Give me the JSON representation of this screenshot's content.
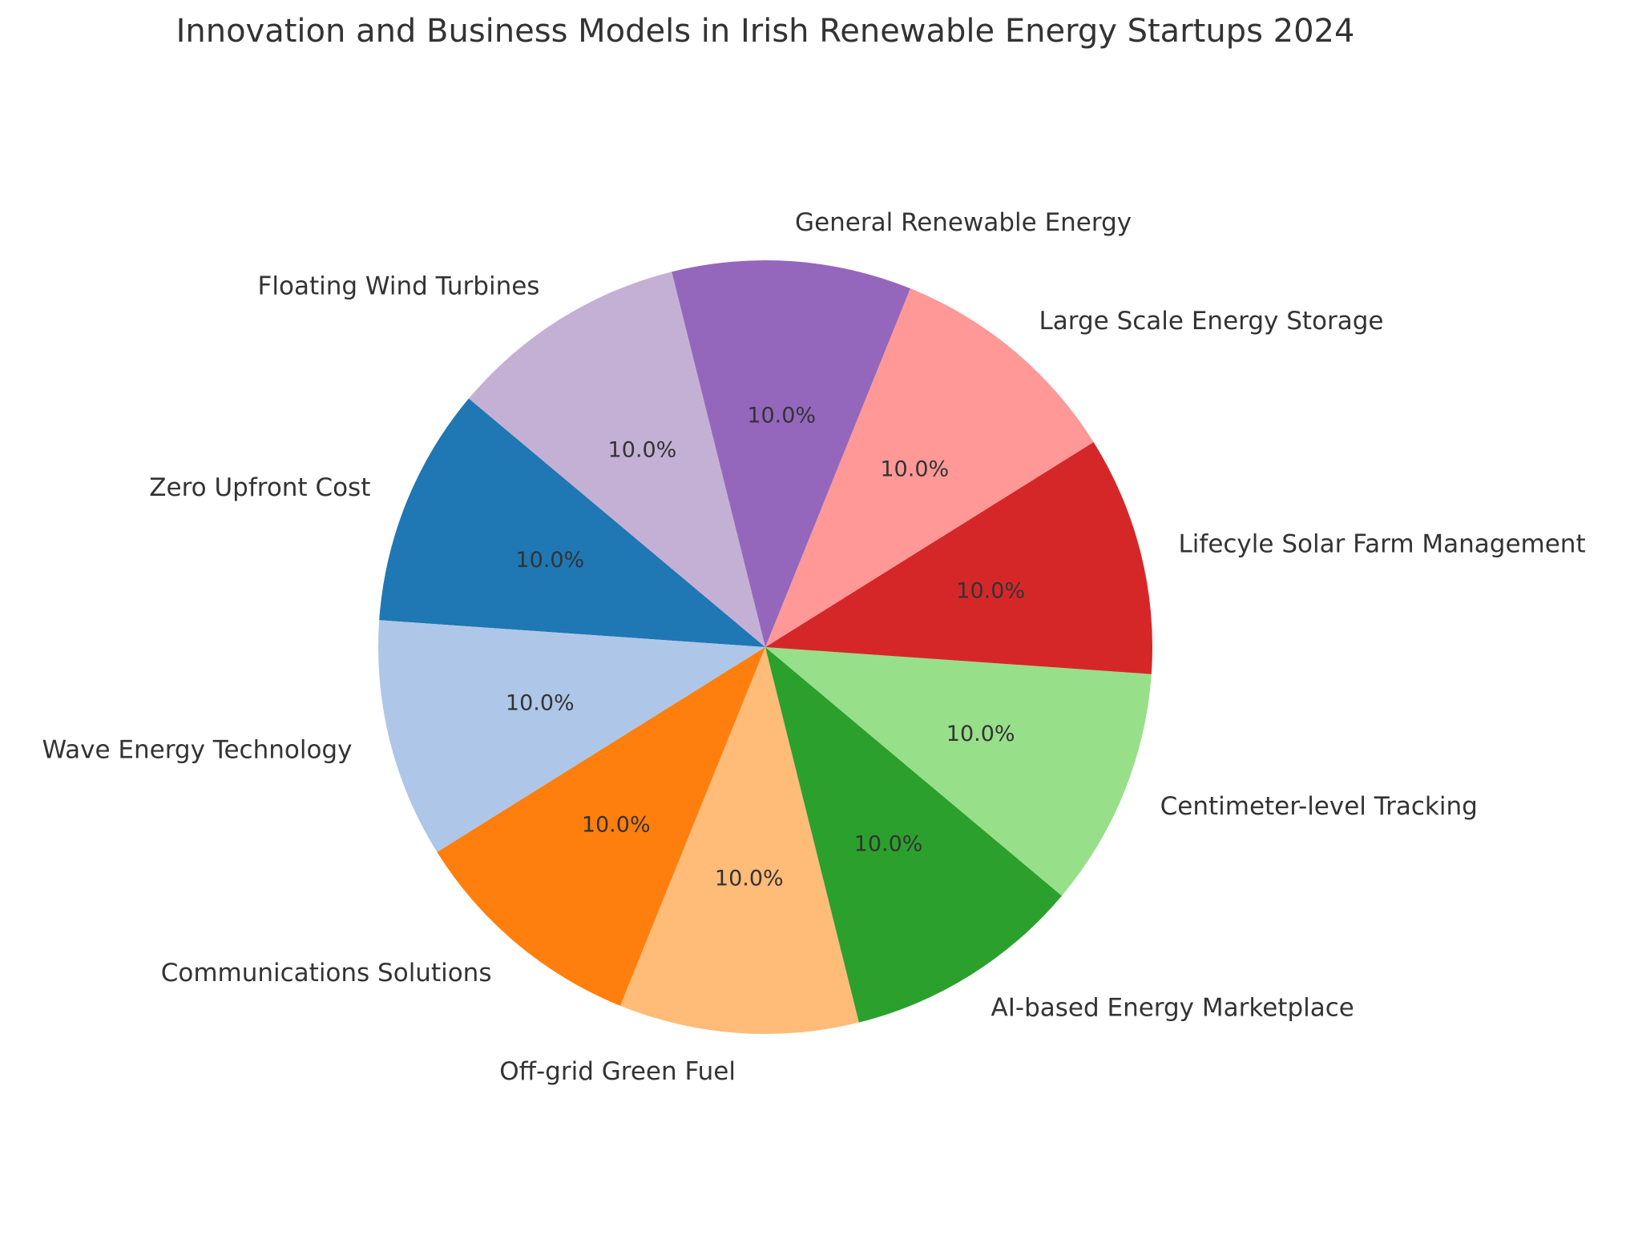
{
  "chart_data": {
    "type": "pie",
    "title": "Innovation and Business Models in Irish Renewable Energy Startups 2024",
    "slices": [
      {
        "label": "Zero Upfront Cost",
        "value": 10.0,
        "pct_label": "10.0%",
        "color": "#1f77b4"
      },
      {
        "label": "Wave Energy Technology",
        "value": 10.0,
        "pct_label": "10.0%",
        "color": "#aec7e8"
      },
      {
        "label": "Communications Solutions",
        "value": 10.0,
        "pct_label": "10.0%",
        "color": "#ff7f0e"
      },
      {
        "label": "Off-grid Green Fuel",
        "value": 10.0,
        "pct_label": "10.0%",
        "color": "#ffbb78"
      },
      {
        "label": "AI-based Energy Marketplace",
        "value": 10.0,
        "pct_label": "10.0%",
        "color": "#2ca02c"
      },
      {
        "label": "Centimeter-level Tracking",
        "value": 10.0,
        "pct_label": "10.0%",
        "color": "#98df8a"
      },
      {
        "label": "Lifecyle Solar Farm Management",
        "value": 10.0,
        "pct_label": "10.0%",
        "color": "#d62728"
      },
      {
        "label": "Large Scale Energy Storage",
        "value": 10.0,
        "pct_label": "10.0%",
        "color": "#ff9896"
      },
      {
        "label": "General Renewable Energy",
        "value": 10.0,
        "pct_label": "10.0%",
        "color": "#9467bd"
      },
      {
        "label": "Floating Wind Turbines",
        "value": 10.0,
        "pct_label": "10.0%",
        "color": "#c5b0d5"
      }
    ],
    "start_angle_deg": 140,
    "direction": "counterclockwise",
    "legend": "none"
  }
}
